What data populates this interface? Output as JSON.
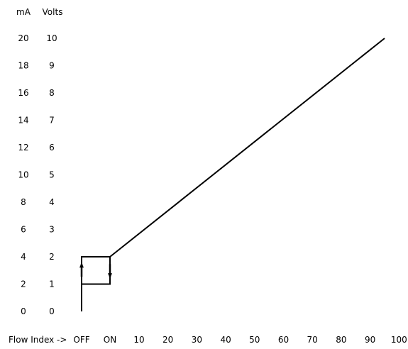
{
  "chart_data": {
    "type": "line",
    "title": "",
    "xlabel": "Flow Index ->",
    "ylabel_left": "mA",
    "ylabel_right": "Volts",
    "x_categories": [
      "OFF",
      "ON",
      "10",
      "20",
      "30",
      "40",
      "50",
      "60",
      "70",
      "80",
      "90",
      "100"
    ],
    "y_mA_ticks": [
      "0",
      "2",
      "4",
      "6",
      "8",
      "10",
      "12",
      "14",
      "16",
      "18",
      "20"
    ],
    "y_volts_ticks": [
      "0",
      "1",
      "2",
      "3",
      "4",
      "5",
      "6",
      "7",
      "8",
      "9",
      "10"
    ],
    "ylim_mA": [
      0,
      20
    ],
    "grid": false,
    "series": [
      {
        "x": [
          0,
          0,
          1,
          1,
          0,
          0
        ],
        "y": [
          0,
          4,
          4,
          2,
          2,
          0
        ],
        "hysteresis_arrows": [
          {
            "position": "OFF",
            "direction": "up"
          },
          {
            "position": "ON",
            "direction": "down"
          }
        ]
      },
      {
        "x": [
          1,
          95
        ],
        "y": [
          4,
          20
        ]
      }
    ],
    "colors": {
      "line": "#000000",
      "text": "#000000",
      "background": "#ffffff"
    }
  }
}
